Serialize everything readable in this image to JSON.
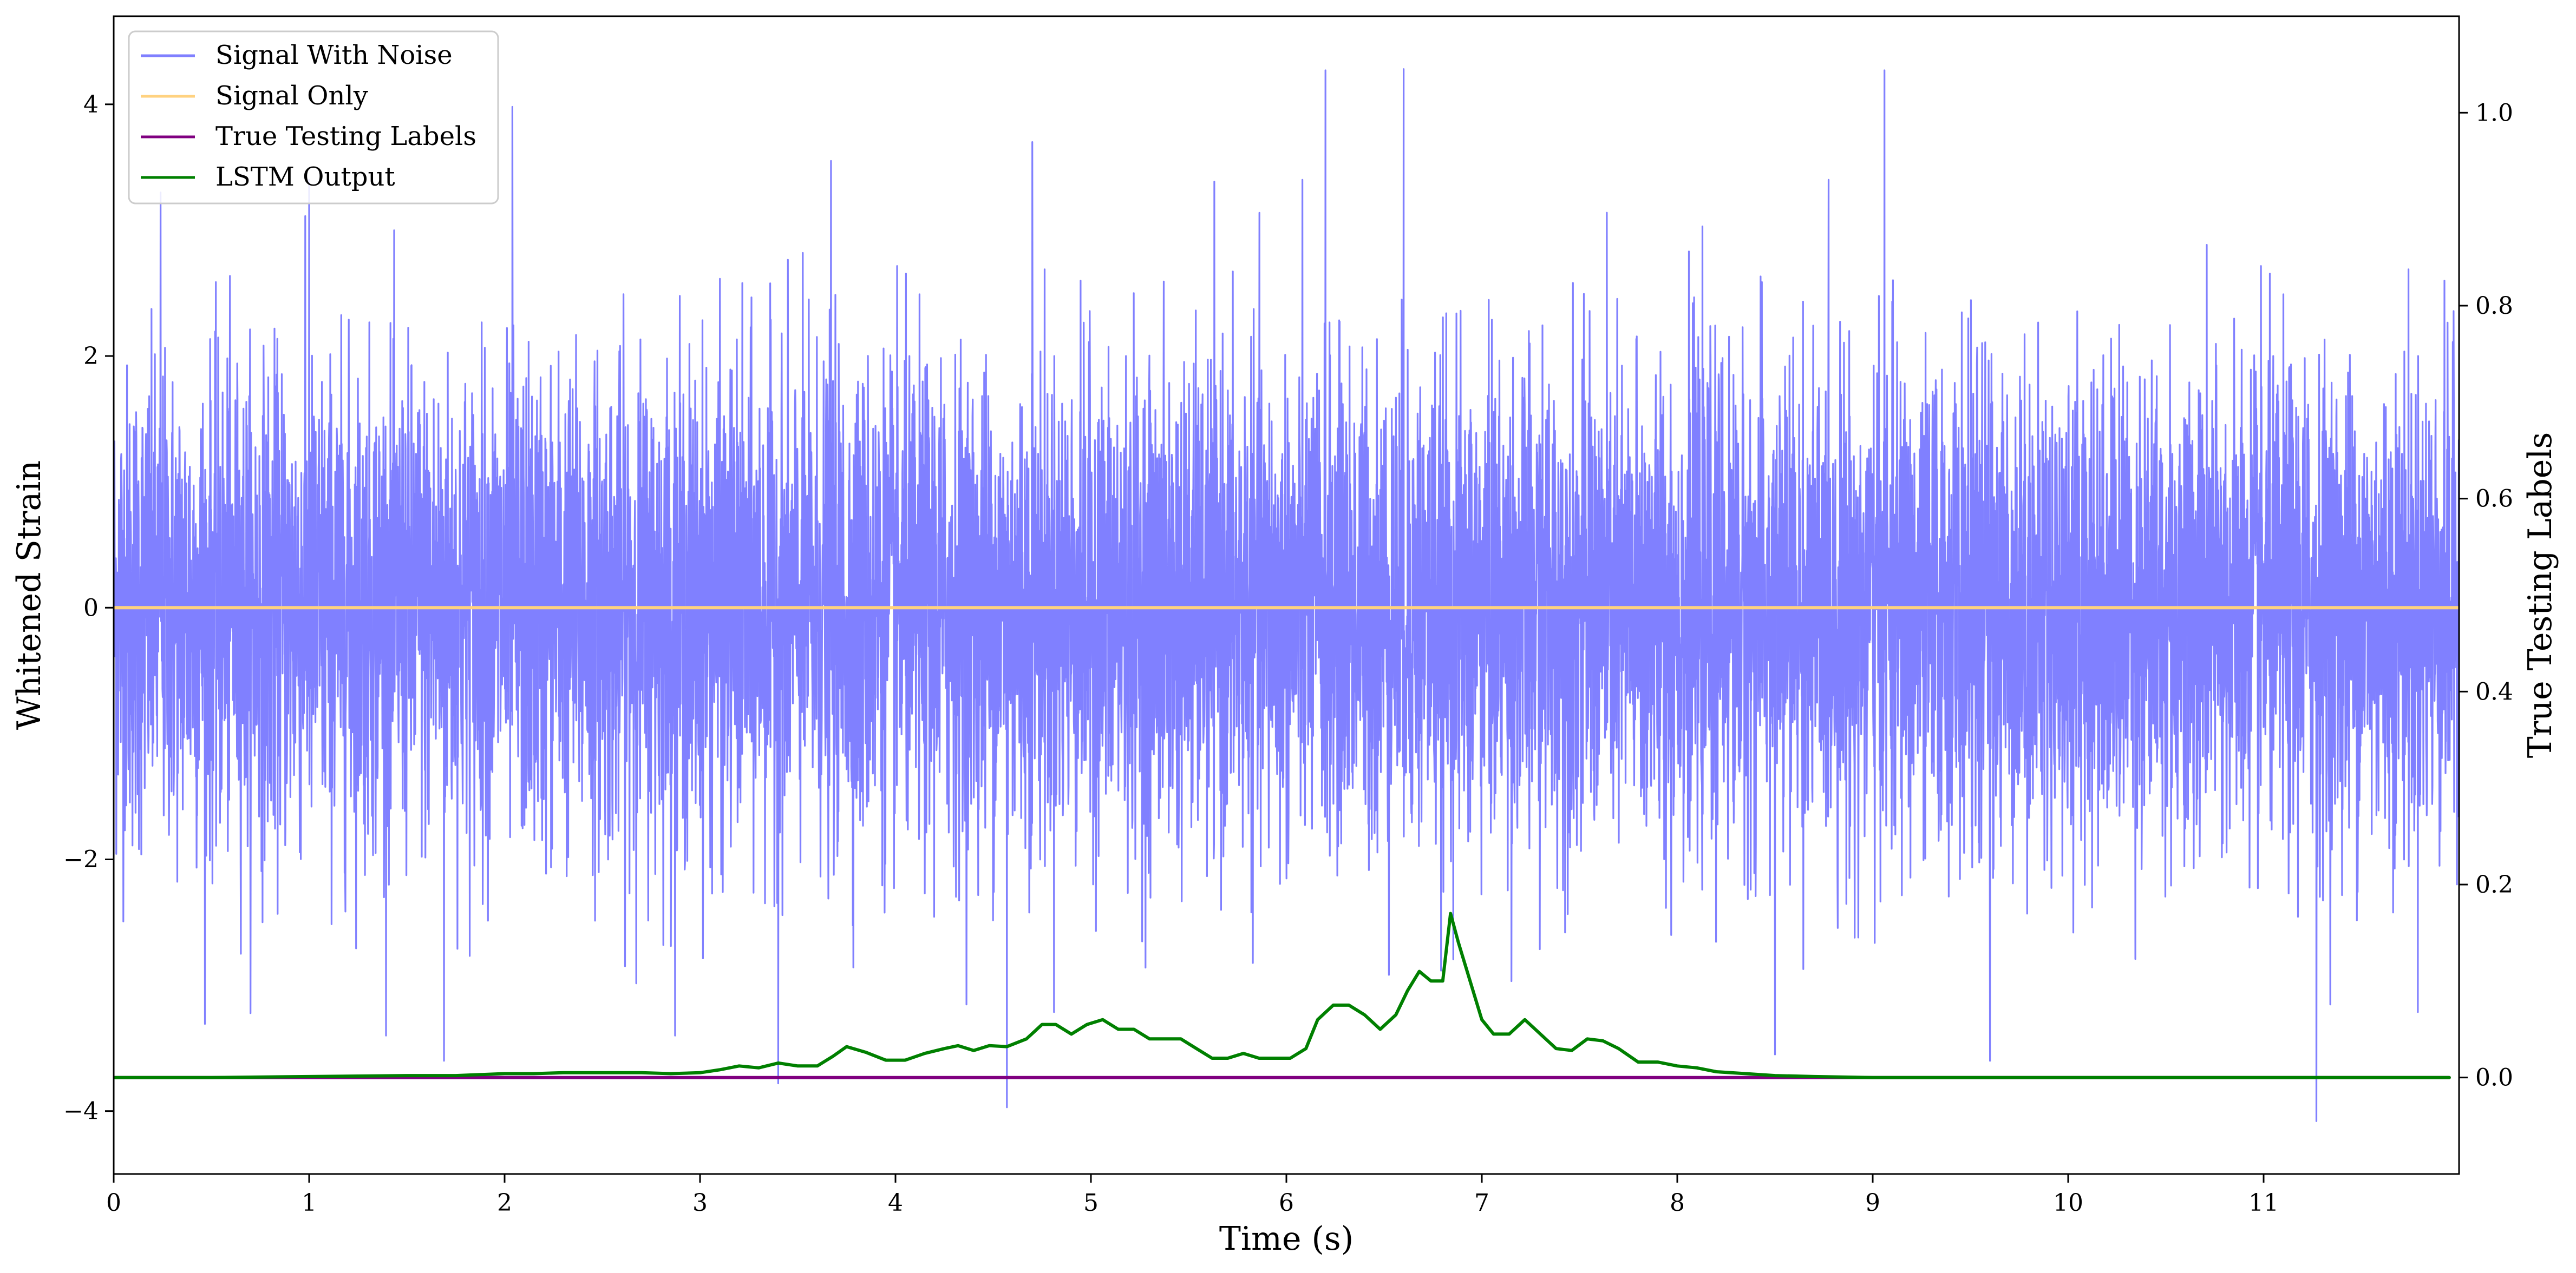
{
  "chart_data": {
    "type": "line",
    "title": "",
    "xlabel": "Time (s)",
    "ylabel": "Whitened Strain",
    "ylabel_right": "True Testing Labels",
    "xlim": [
      0,
      12
    ],
    "ylim": [
      -4.5,
      4.7
    ],
    "ylim_right": [
      -0.1,
      1.1
    ],
    "x_ticks": [
      0,
      1,
      2,
      3,
      4,
      5,
      6,
      7,
      8,
      9,
      10,
      11
    ],
    "y_ticks": [
      -4,
      -2,
      0,
      2,
      4
    ],
    "y_ticks_right": [
      0.0,
      0.2,
      0.4,
      0.6,
      0.8,
      1.0
    ],
    "y_tick_labels": [
      "−4",
      "−2",
      "0",
      "2",
      "4"
    ],
    "y_tick_labels_right": [
      "0.0",
      "0.2",
      "0.4",
      "0.6",
      "0.8",
      "1.0"
    ],
    "grid": false,
    "legend_position": "top-left",
    "series": [
      {
        "name": "Signal With Noise",
        "axis": "left",
        "color": "#8080ff",
        "description_values": "dense whitened noise, roughly unit variance, peaks near ±4.3",
        "spikes": [
          {
            "x": 0.24,
            "y": 3.3
          },
          {
            "x": 1.0,
            "y": 3.4
          },
          {
            "x": 2.04,
            "y": 3.98
          },
          {
            "x": 3.4,
            "y": -3.78
          },
          {
            "x": 3.67,
            "y": 3.55
          },
          {
            "x": 4.57,
            "y": -3.97
          },
          {
            "x": 4.7,
            "y": 3.7
          },
          {
            "x": 6.2,
            "y": 4.27
          },
          {
            "x": 6.6,
            "y": 4.28
          },
          {
            "x": 8.5,
            "y": -3.55
          },
          {
            "x": 9.06,
            "y": 4.27
          },
          {
            "x": 9.6,
            "y": -3.6
          },
          {
            "x": 11.27,
            "y": -4.08
          },
          {
            "x": 1.69,
            "y": -3.6
          }
        ]
      },
      {
        "name": "Signal Only",
        "axis": "left",
        "color": "#ffd280",
        "x": [
          0,
          12
        ],
        "y": [
          0,
          0
        ]
      },
      {
        "name": "True Testing Labels",
        "axis": "right",
        "color": "#800080",
        "x": [
          0,
          11.95
        ],
        "y": [
          0,
          0
        ]
      },
      {
        "name": "LSTM Output",
        "axis": "right",
        "color": "#008000",
        "x": [
          0,
          0.5,
          1.0,
          1.5,
          1.75,
          2.0,
          2.15,
          2.3,
          2.5,
          2.7,
          2.85,
          3.0,
          3.1,
          3.2,
          3.3,
          3.4,
          3.5,
          3.6,
          3.68,
          3.75,
          3.85,
          3.95,
          4.05,
          4.15,
          4.25,
          4.32,
          4.4,
          4.48,
          4.57,
          4.67,
          4.75,
          4.82,
          4.9,
          4.98,
          5.06,
          5.14,
          5.22,
          5.3,
          5.38,
          5.46,
          5.54,
          5.62,
          5.7,
          5.78,
          5.86,
          5.94,
          6.02,
          6.1,
          6.16,
          6.24,
          6.32,
          6.4,
          6.48,
          6.56,
          6.62,
          6.68,
          6.74,
          6.8,
          6.84,
          6.88,
          6.94,
          7.0,
          7.06,
          7.14,
          7.22,
          7.3,
          7.38,
          7.46,
          7.54,
          7.62,
          7.7,
          7.8,
          7.9,
          8.0,
          8.1,
          8.2,
          8.35,
          8.5,
          8.7,
          9.0,
          9.5,
          10.0,
          11.0,
          11.95
        ],
        "y": [
          0.0,
          0.0,
          0.001,
          0.002,
          0.002,
          0.004,
          0.004,
          0.005,
          0.005,
          0.005,
          0.004,
          0.005,
          0.008,
          0.012,
          0.01,
          0.015,
          0.012,
          0.012,
          0.022,
          0.032,
          0.026,
          0.018,
          0.018,
          0.025,
          0.03,
          0.033,
          0.028,
          0.033,
          0.032,
          0.04,
          0.055,
          0.055,
          0.045,
          0.055,
          0.06,
          0.05,
          0.05,
          0.04,
          0.04,
          0.04,
          0.03,
          0.02,
          0.02,
          0.025,
          0.02,
          0.02,
          0.02,
          0.03,
          0.06,
          0.075,
          0.075,
          0.065,
          0.05,
          0.065,
          0.09,
          0.11,
          0.1,
          0.1,
          0.17,
          0.14,
          0.1,
          0.06,
          0.045,
          0.045,
          0.06,
          0.045,
          0.03,
          0.028,
          0.04,
          0.038,
          0.03,
          0.016,
          0.016,
          0.012,
          0.01,
          0.006,
          0.004,
          0.002,
          0.001,
          0.0,
          0.0,
          0.0,
          0.0,
          0.0
        ]
      }
    ]
  }
}
